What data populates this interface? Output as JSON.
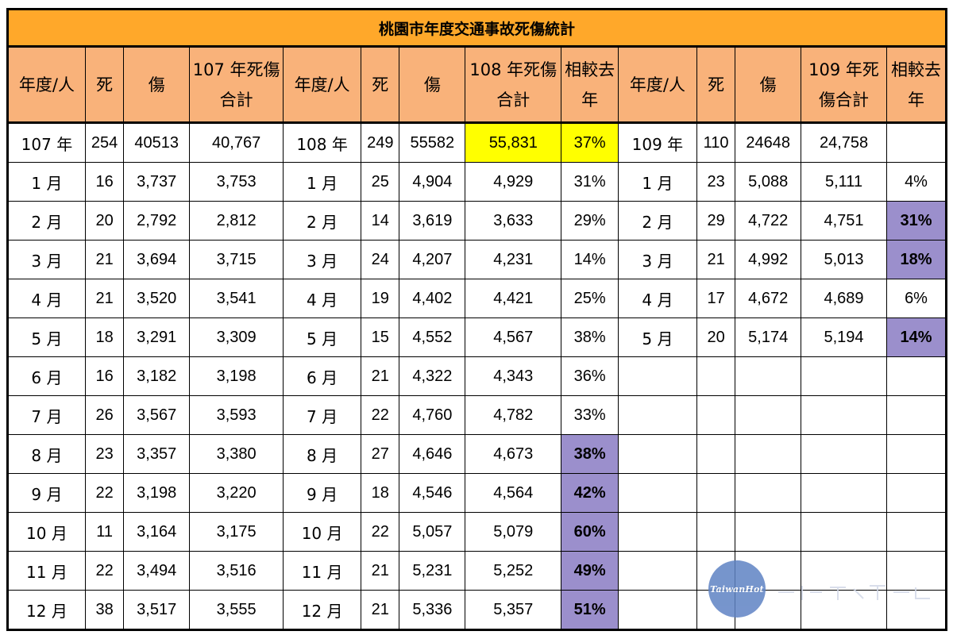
{
  "title": "桃園市年度交通事故死傷統計",
  "headers": [
    "年度/人",
    "死",
    "傷",
    "107 年死傷|合計",
    "年度/人",
    "死",
    "傷",
    "108 年死傷|合計",
    "相較去|年",
    "年度/人",
    "死",
    "傷",
    "109 年死|傷合計",
    "相較去|年"
  ],
  "rows": [
    {
      "c": [
        "107 年",
        "254",
        "40513",
        "40,767",
        "108 年",
        "249",
        "55582",
        "55,831",
        "37%",
        "109 年",
        "110",
        "24648",
        "24,758",
        ""
      ]
    },
    {
      "c": [
        "1 月",
        "16",
        "3,737",
        "3,753",
        "1 月",
        "25",
        "4,904",
        "4,929",
        "31%",
        "1 月",
        "23",
        "5,088",
        "5,111",
        "4%"
      ]
    },
    {
      "c": [
        "2 月",
        "20",
        "2,792",
        "2,812",
        "2 月",
        "14",
        "3,619",
        "3,633",
        "29%",
        "2 月",
        "29",
        "4,722",
        "4,751",
        "31%"
      ]
    },
    {
      "c": [
        "3 月",
        "21",
        "3,694",
        "3,715",
        "3 月",
        "24",
        "4,207",
        "4,231",
        "14%",
        "3 月",
        "21",
        "4,992",
        "5,013",
        "18%"
      ]
    },
    {
      "c": [
        "4 月",
        "21",
        "3,520",
        "3,541",
        "4 月",
        "19",
        "4,402",
        "4,421",
        "25%",
        "4 月",
        "17",
        "4,672",
        "4,689",
        "6%"
      ]
    },
    {
      "c": [
        "5 月",
        "18",
        "3,291",
        "3,309",
        "5 月",
        "15",
        "4,552",
        "4,567",
        "38%",
        "5 月",
        "20",
        "5,174",
        "5,194",
        "14%"
      ]
    },
    {
      "c": [
        "6 月",
        "16",
        "3,182",
        "3,198",
        "6 月",
        "21",
        "4,322",
        "4,343",
        "36%",
        "",
        "",
        "",
        "",
        ""
      ]
    },
    {
      "c": [
        "7 月",
        "26",
        "3,567",
        "3,593",
        "7 月",
        "22",
        "4,760",
        "4,782",
        "33%",
        "",
        "",
        "",
        "",
        ""
      ]
    },
    {
      "c": [
        "8 月",
        "23",
        "3,357",
        "3,380",
        "8 月",
        "27",
        "4,646",
        "4,673",
        "38%",
        "",
        "",
        "",
        "",
        ""
      ]
    },
    {
      "c": [
        "9 月",
        "22",
        "3,198",
        "3,220",
        "9 月",
        "18",
        "4,546",
        "4,564",
        "42%",
        "",
        "",
        "",
        "",
        ""
      ]
    },
    {
      "c": [
        "10 月",
        "11",
        "3,164",
        "3,175",
        "10 月",
        "22",
        "5,057",
        "5,079",
        "60%",
        "",
        "",
        "",
        "",
        ""
      ]
    },
    {
      "c": [
        "11 月",
        "22",
        "3,494",
        "3,516",
        "11 月",
        "21",
        "5,231",
        "5,252",
        "49%",
        "",
        "",
        "",
        "",
        ""
      ]
    },
    {
      "c": [
        "12 月",
        "38",
        "3,517",
        "3,555",
        "12 月",
        "21",
        "5,336",
        "5,357",
        "51%",
        "",
        "",
        "",
        "",
        ""
      ]
    }
  ],
  "highlights": {
    "yellow": [
      [
        0,
        7
      ],
      [
        0,
        8
      ]
    ],
    "purple": [
      [
        2,
        13
      ],
      [
        3,
        13
      ],
      [
        5,
        13
      ],
      [
        8,
        8
      ],
      [
        9,
        8
      ],
      [
        10,
        8
      ],
      [
        11,
        8
      ],
      [
        12,
        8
      ]
    ]
  },
  "colors": {
    "title_bg": "#ffa82a",
    "header_bg": "#f9b27a",
    "yellow": "#ffff00",
    "purple": "#9b8fcc"
  },
  "watermark": {
    "logo_text": "TaiwanHot",
    "icon": "taiwanhot-logo-icon"
  }
}
